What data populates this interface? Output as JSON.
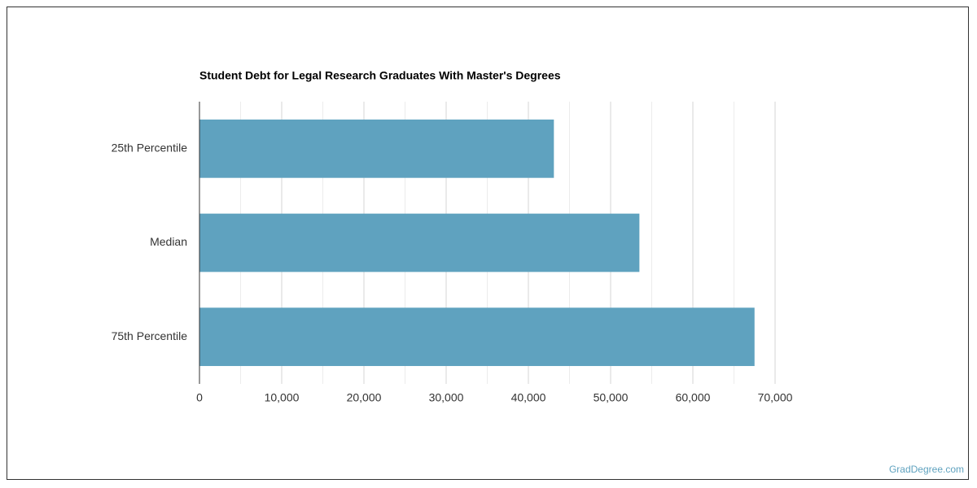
{
  "chart_data": {
    "type": "bar",
    "orientation": "horizontal",
    "title": "Student Debt for Legal Research Graduates With Master's Degrees",
    "categories": [
      "25th Percentile",
      "Median",
      "75th Percentile"
    ],
    "values": [
      43100,
      53500,
      67500
    ],
    "color": "#5fa2bf",
    "xlim": [
      0,
      70000
    ],
    "xticks": [
      0,
      {
        "value": 10000,
        "label": "10,000"
      },
      {
        "value": 20000,
        "label": "20,000"
      },
      {
        "value": 30000,
        "label": "30,000"
      },
      {
        "value": 40000,
        "label": "40,000"
      },
      {
        "value": 50000,
        "label": "50,000"
      },
      {
        "value": 60000,
        "label": "60,000"
      },
      {
        "value": 70000,
        "label": "70,000"
      }
    ],
    "minor_xticks": [
      5000,
      15000,
      25000,
      35000,
      45000,
      55000,
      65000
    ],
    "grid": true
  },
  "watermark": "GradDegree.com"
}
